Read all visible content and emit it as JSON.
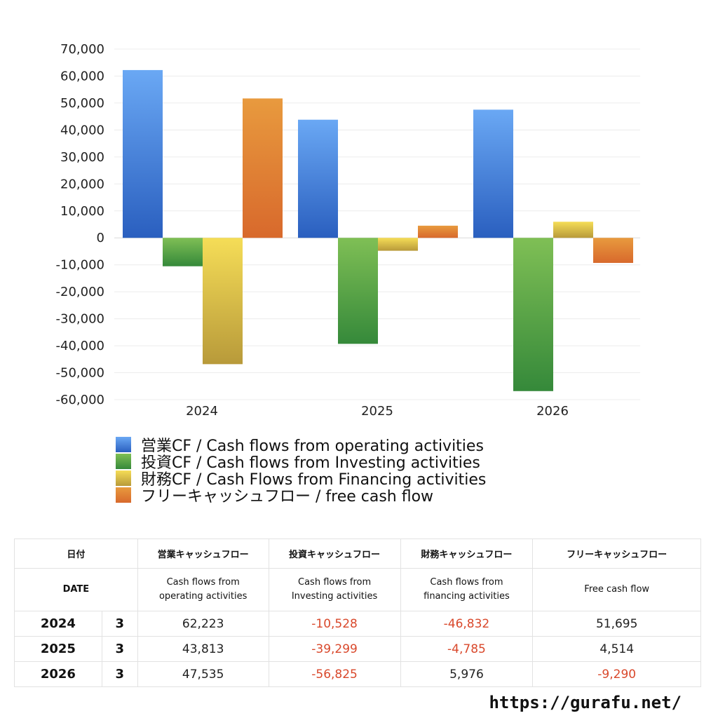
{
  "colors": {
    "operating": "#3f79d6",
    "investing": "#4c9a3e",
    "financing": "#e3c93d",
    "free": "#e07f34",
    "negative_text": "#d9482b",
    "positive_text": "#222222"
  },
  "chart_data": {
    "type": "bar",
    "categories": [
      "2024",
      "2025",
      "2026"
    ],
    "series": [
      {
        "name": "営業CF / Cash flows from operating activities",
        "values": [
          62223,
          43813,
          47535
        ]
      },
      {
        "name": "投資CF / Cash flows from Investing activities",
        "values": [
          -10528,
          -39299,
          -56825
        ]
      },
      {
        "name": "財務CF / Cash Flows from Financing activities",
        "values": [
          -46832,
          -4785,
          5976
        ]
      },
      {
        "name": "フリーキャッシュフロー / free cash flow",
        "values": [
          51695,
          4514,
          -9290
        ]
      }
    ],
    "yticks": [
      "70,000",
      "60,000",
      "50,000",
      "40,000",
      "30,000",
      "20,000",
      "10,000",
      "0",
      "-10,000",
      "-20,000",
      "-30,000",
      "-40,000",
      "-50,000",
      "-60,000"
    ],
    "ylim": [
      -60000,
      70000
    ],
    "grid": true,
    "legend_position": "bottom"
  },
  "table": {
    "header_jp": [
      "日付",
      "営業キャッシュフロー",
      "投資キャッシュフロー",
      "財務キャッシュフロー",
      "フリーキャッシュフロー"
    ],
    "header_en": [
      "DATE",
      "Cash flows from operating activities",
      "Cash flows from Investing activities",
      "Cash flows from financing activities",
      "Free cash flow"
    ],
    "rows": [
      {
        "year": "2024",
        "month": "3",
        "operating": "62,223",
        "investing": "-10,528",
        "financing": "-46,832",
        "free": "51,695"
      },
      {
        "year": "2025",
        "month": "3",
        "operating": "43,813",
        "investing": "-39,299",
        "financing": "-4,785",
        "free": "4,514"
      },
      {
        "year": "2026",
        "month": "3",
        "operating": "47,535",
        "investing": "-56,825",
        "financing": "5,976",
        "free": "-9,290"
      }
    ]
  },
  "site_url": "https://gurafu.net/"
}
